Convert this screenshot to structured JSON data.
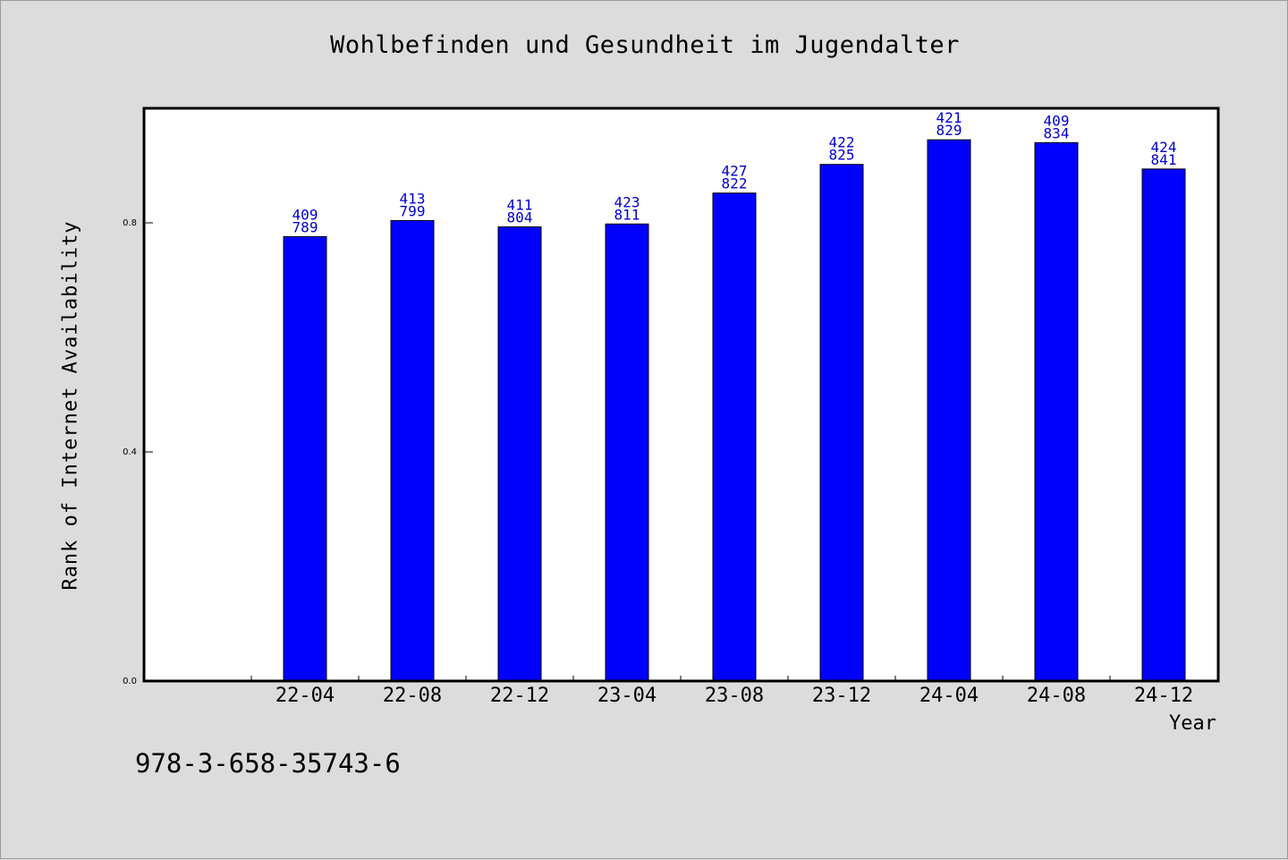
{
  "title": "Wohlbefinden und Gesundheit im Jugendalter",
  "footnote": "978-3-658-35743-6",
  "colors": {
    "bar": "#0000ff",
    "bar_label": "#0000cc",
    "plot_background": "#ffffff",
    "page_background": "#dcdcdc"
  },
  "chart_data": {
    "type": "bar",
    "title": "Wohlbefinden und Gesundheit im Jugendalter",
    "xlabel": "Year",
    "ylabel": "Rank of Internet Availability",
    "categories": [
      "22-04",
      "22-08",
      "22-12",
      "23-04",
      "23-08",
      "23-12",
      "24-04",
      "24-08",
      "24-12"
    ],
    "values": [
      0.776,
      0.804,
      0.793,
      0.798,
      0.852,
      0.902,
      0.945,
      0.94,
      0.894
    ],
    "bar_labels_top": [
      "409",
      "413",
      "411",
      "423",
      "427",
      "422",
      "421",
      "409",
      "424"
    ],
    "bar_labels_bottom": [
      "789",
      "799",
      "804",
      "811",
      "822",
      "825",
      "829",
      "834",
      "841"
    ],
    "yticks": [
      "0.0",
      "0.4",
      "0.8"
    ],
    "ytick_values": [
      0.0,
      0.4,
      0.8
    ],
    "ylim": [
      0,
      1.0
    ],
    "grid": false,
    "legend": "none"
  }
}
